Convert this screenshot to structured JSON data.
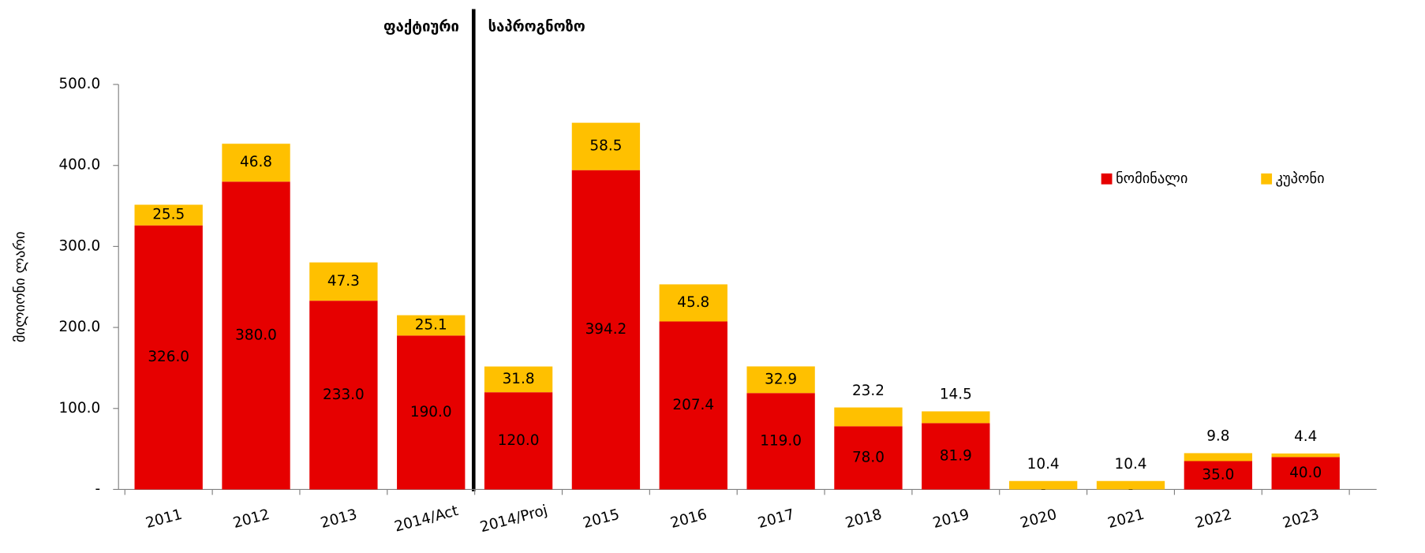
{
  "chart_data": {
    "type": "stacked-bar",
    "annotations": [
      "ფაქტიური",
      "საპროგნოზო"
    ],
    "y_label": "მილიონი ლარი",
    "categories": [
      "2011",
      "2012",
      "2013",
      "2014/Act",
      "2014/Proj",
      "2015",
      "2016",
      "2017",
      "2018",
      "2019",
      "2020",
      "2021",
      "2022",
      "2023"
    ],
    "series": [
      {
        "name": "ნომინალი",
        "color": "#e60000",
        "values": [
          326,
          380,
          233,
          190,
          120,
          394.2,
          207.4,
          119,
          78,
          81.9,
          0,
          0,
          35,
          40
        ],
        "value_labels": [
          "326.0",
          "380.0",
          "233.0",
          "190.0",
          "120.0",
          "394.2",
          "207.4",
          "119.0",
          "78.0",
          "81.9",
          "-",
          "-",
          "35.0",
          "40.0"
        ]
      },
      {
        "name": "კუპონი",
        "color": "#ffc000",
        "values": [
          25.5,
          46.8,
          47.3,
          25.1,
          31.8,
          58.5,
          45.8,
          32.9,
          23.2,
          14.5,
          10.4,
          10.4,
          9.8,
          4.4
        ]
      }
    ],
    "ylim": [
      0,
      500
    ],
    "yticks": [
      {
        "value": 0,
        "label": "-"
      },
      {
        "value": 100,
        "label": "100.0"
      },
      {
        "value": 200,
        "label": "200.0"
      },
      {
        "value": 300,
        "label": "300.0"
      },
      {
        "value": 400,
        "label": "400.0"
      },
      {
        "value": 500,
        "label": "500.0"
      }
    ],
    "legend": "right"
  }
}
